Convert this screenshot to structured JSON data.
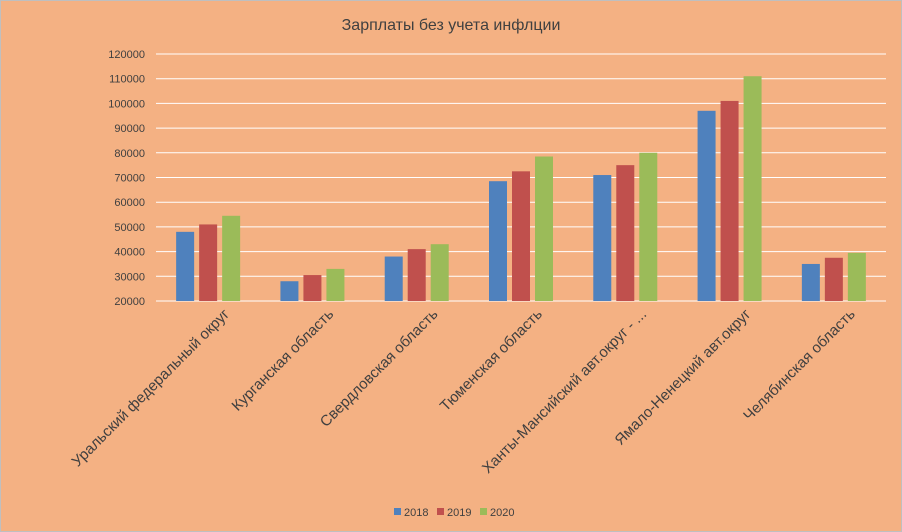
{
  "chart_data": {
    "type": "bar",
    "title": "Зарплаты без учета инфлции",
    "categories": [
      "Уральский федеральный округ",
      "Курганская область",
      "Свердловская область",
      "Тюменская область",
      "Ханты-Мансийский авт.округ - ...",
      "Ямало-Ненецкий авт.округ",
      "Челябинская область"
    ],
    "series": [
      {
        "name": "2018",
        "color": "#4f81bd",
        "values": [
          48000,
          28000,
          38000,
          68500,
          71000,
          97000,
          35000
        ]
      },
      {
        "name": "2019",
        "color": "#c0504d",
        "values": [
          51000,
          30500,
          41000,
          72500,
          75000,
          101000,
          37500
        ]
      },
      {
        "name": "2020",
        "color": "#9bbb59",
        "values": [
          54500,
          33000,
          43000,
          78500,
          80000,
          111000,
          39500
        ]
      }
    ],
    "ylim": [
      20000,
      120000
    ],
    "yticks": [
      20000,
      30000,
      40000,
      50000,
      60000,
      70000,
      80000,
      90000,
      100000,
      110000,
      120000
    ],
    "grid": true,
    "legend_position": "bottom"
  }
}
